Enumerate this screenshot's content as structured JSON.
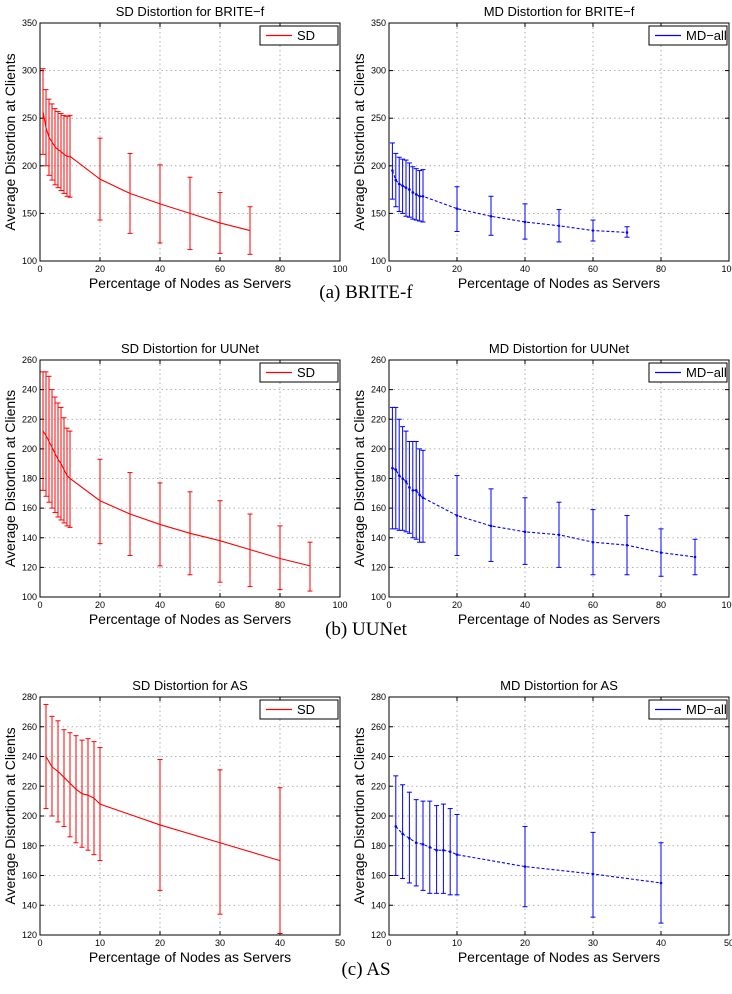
{
  "colors": {
    "sd": "#ff0000",
    "md": "#0000ff",
    "axis": "#000000",
    "grid": "#9a9a9a"
  },
  "captions": [
    "(a) BRITE-f",
    "(b) UUNet",
    "(c) AS"
  ],
  "chart_data": [
    {
      "type": "line",
      "title": "SD Distortion for BRITE−f",
      "xlabel": "Percentage of Nodes as Servers",
      "ylabel": "Average Distortion at Clients",
      "xlim": [
        0,
        100
      ],
      "ylim": [
        100,
        350
      ],
      "xticks": [
        0,
        20,
        40,
        60,
        80,
        100
      ],
      "yticks": [
        100,
        150,
        200,
        250,
        300,
        350
      ],
      "grid": true,
      "legend_position": "top-right",
      "series": [
        {
          "name": "SD",
          "color": "#ff0000",
          "dash": "solid",
          "x": [
            1,
            2,
            3,
            4,
            5,
            6,
            7,
            8,
            9,
            10,
            20,
            30,
            40,
            50,
            60,
            70
          ],
          "y": [
            257,
            240,
            230,
            225,
            220,
            217,
            215,
            212,
            210,
            210,
            186,
            171,
            160,
            150,
            140,
            132
          ],
          "ylow": [
            212,
            200,
            190,
            185,
            180,
            177,
            174,
            171,
            168,
            167,
            143,
            129,
            119,
            112,
            108,
            107
          ],
          "yhigh": [
            302,
            280,
            270,
            265,
            260,
            257,
            255,
            253,
            252,
            253,
            229,
            213,
            201,
            188,
            172,
            157
          ]
        }
      ]
    },
    {
      "type": "line",
      "title": "MD Distortion for BRITE−f",
      "xlabel": "Percentage of Nodes as Servers",
      "ylabel": "Average Distortion at Clients",
      "xlim": [
        0,
        100
      ],
      "ylim": [
        100,
        350
      ],
      "xticks": [
        0,
        20,
        40,
        60,
        80,
        100
      ],
      "yticks": [
        100,
        150,
        200,
        250,
        300,
        350
      ],
      "grid": true,
      "legend_position": "top-right",
      "series": [
        {
          "name": "MD−all",
          "color": "#0000ff",
          "dash": "dashed",
          "x": [
            1,
            2,
            3,
            4,
            5,
            6,
            7,
            8,
            9,
            10,
            20,
            30,
            40,
            50,
            60,
            70
          ],
          "y": [
            195,
            185,
            181,
            179,
            177,
            175,
            172,
            170,
            168,
            168,
            155,
            147,
            141,
            137,
            132,
            130
          ],
          "ylow": [
            165,
            157,
            152,
            150,
            147,
            146,
            144,
            143,
            142,
            141,
            131,
            127,
            123,
            120,
            121,
            125
          ],
          "yhigh": [
            224,
            213,
            209,
            207,
            206,
            203,
            199,
            197,
            195,
            196,
            178,
            168,
            160,
            154,
            143,
            136
          ]
        }
      ]
    },
    {
      "type": "line",
      "title": "SD Distortion for UUNet",
      "xlabel": "Percentage of Nodes as Servers",
      "ylabel": "Average Distortion at Clients",
      "xlim": [
        0,
        100
      ],
      "ylim": [
        100,
        260
      ],
      "xticks": [
        0,
        20,
        40,
        60,
        80,
        100
      ],
      "yticks": [
        100,
        120,
        140,
        160,
        180,
        200,
        220,
        240,
        260
      ],
      "grid": true,
      "legend_position": "top-right",
      "series": [
        {
          "name": "SD",
          "color": "#ff0000",
          "dash": "solid",
          "x": [
            1,
            2,
            3,
            4,
            5,
            6,
            7,
            8,
            9,
            10,
            20,
            30,
            40,
            50,
            60,
            70,
            80,
            90
          ],
          "y": [
            212,
            209,
            205,
            201,
            197,
            193,
            190,
            186,
            182,
            180,
            165,
            156,
            149,
            143,
            138,
            132,
            126,
            121
          ],
          "ylow": [
            172,
            168,
            164,
            160,
            157,
            154,
            152,
            150,
            148,
            147,
            136,
            128,
            121,
            115,
            110,
            107,
            105,
            104
          ],
          "yhigh": [
            252,
            252,
            249,
            240,
            235,
            231,
            228,
            221,
            214,
            212,
            193,
            184,
            177,
            171,
            165,
            156,
            148,
            137
          ]
        }
      ]
    },
    {
      "type": "line",
      "title": "MD Distortion for UUNet",
      "xlabel": "Percentage of Nodes as Servers",
      "ylabel": "Average Distortion at Clients",
      "xlim": [
        0,
        100
      ],
      "ylim": [
        100,
        260
      ],
      "xticks": [
        0,
        20,
        40,
        60,
        80,
        100
      ],
      "yticks": [
        100,
        120,
        140,
        160,
        180,
        200,
        220,
        240,
        260
      ],
      "grid": true,
      "legend_position": "top-right",
      "series": [
        {
          "name": "MD−all",
          "color": "#0000ff",
          "dash": "dashed",
          "x": [
            1,
            2,
            3,
            4,
            5,
            6,
            7,
            8,
            9,
            10,
            20,
            30,
            40,
            50,
            60,
            70,
            80,
            90
          ],
          "y": [
            187,
            186,
            182,
            180,
            178,
            174,
            172,
            172,
            169,
            167,
            155,
            148,
            144,
            142,
            137,
            135,
            130,
            127
          ],
          "ylow": [
            146,
            146,
            145,
            145,
            144,
            143,
            140,
            139,
            137,
            137,
            128,
            124,
            122,
            120,
            115,
            115,
            114,
            115
          ],
          "yhigh": [
            228,
            228,
            220,
            215,
            212,
            205,
            205,
            205,
            200,
            199,
            182,
            173,
            167,
            164,
            159,
            155,
            146,
            139
          ]
        }
      ]
    },
    {
      "type": "line",
      "title": "SD Distortion for AS",
      "xlabel": "Percentage of Nodes as Servers",
      "ylabel": "Average Distortion at Clients",
      "xlim": [
        0,
        50
      ],
      "ylim": [
        120,
        280
      ],
      "xticks": [
        0,
        10,
        20,
        30,
        40,
        50
      ],
      "yticks": [
        120,
        140,
        160,
        180,
        200,
        220,
        240,
        260,
        280
      ],
      "grid": true,
      "legend_position": "top-right",
      "series": [
        {
          "name": "SD",
          "color": "#ff0000",
          "dash": "solid",
          "x": [
            1,
            2,
            3,
            4,
            5,
            6,
            7,
            8,
            9,
            10,
            20,
            30,
            40
          ],
          "y": [
            240,
            233,
            230,
            226,
            222,
            218,
            215,
            214,
            212,
            208,
            194,
            182,
            170
          ],
          "ylow": [
            205,
            200,
            196,
            193,
            186,
            182,
            179,
            177,
            174,
            170,
            150,
            134,
            121
          ],
          "yhigh": [
            275,
            267,
            264,
            258,
            256,
            254,
            251,
            252,
            250,
            246,
            238,
            231,
            219
          ]
        }
      ]
    },
    {
      "type": "line",
      "title": "MD Distortion for AS",
      "xlabel": "Percentage of Nodes as Servers",
      "ylabel": "Average Distortion at Clients",
      "xlim": [
        0,
        50
      ],
      "ylim": [
        120,
        280
      ],
      "xticks": [
        0,
        10,
        20,
        30,
        40,
        50
      ],
      "yticks": [
        120,
        140,
        160,
        180,
        200,
        220,
        240,
        260,
        280
      ],
      "grid": true,
      "legend_position": "top-right",
      "series": [
        {
          "name": "MD−all",
          "color": "#0000ff",
          "dash": "dashed",
          "x": [
            1,
            2,
            3,
            4,
            5,
            6,
            7,
            8,
            9,
            10,
            20,
            30,
            40
          ],
          "y": [
            193,
            188,
            185,
            182,
            181,
            179,
            177,
            177,
            176,
            174,
            166,
            161,
            155
          ],
          "ylow": [
            160,
            158,
            155,
            153,
            150,
            148,
            148,
            148,
            147,
            147,
            139,
            132,
            128
          ],
          "yhigh": [
            227,
            221,
            216,
            211,
            210,
            210,
            207,
            208,
            205,
            201,
            193,
            189,
            182
          ]
        }
      ]
    }
  ]
}
